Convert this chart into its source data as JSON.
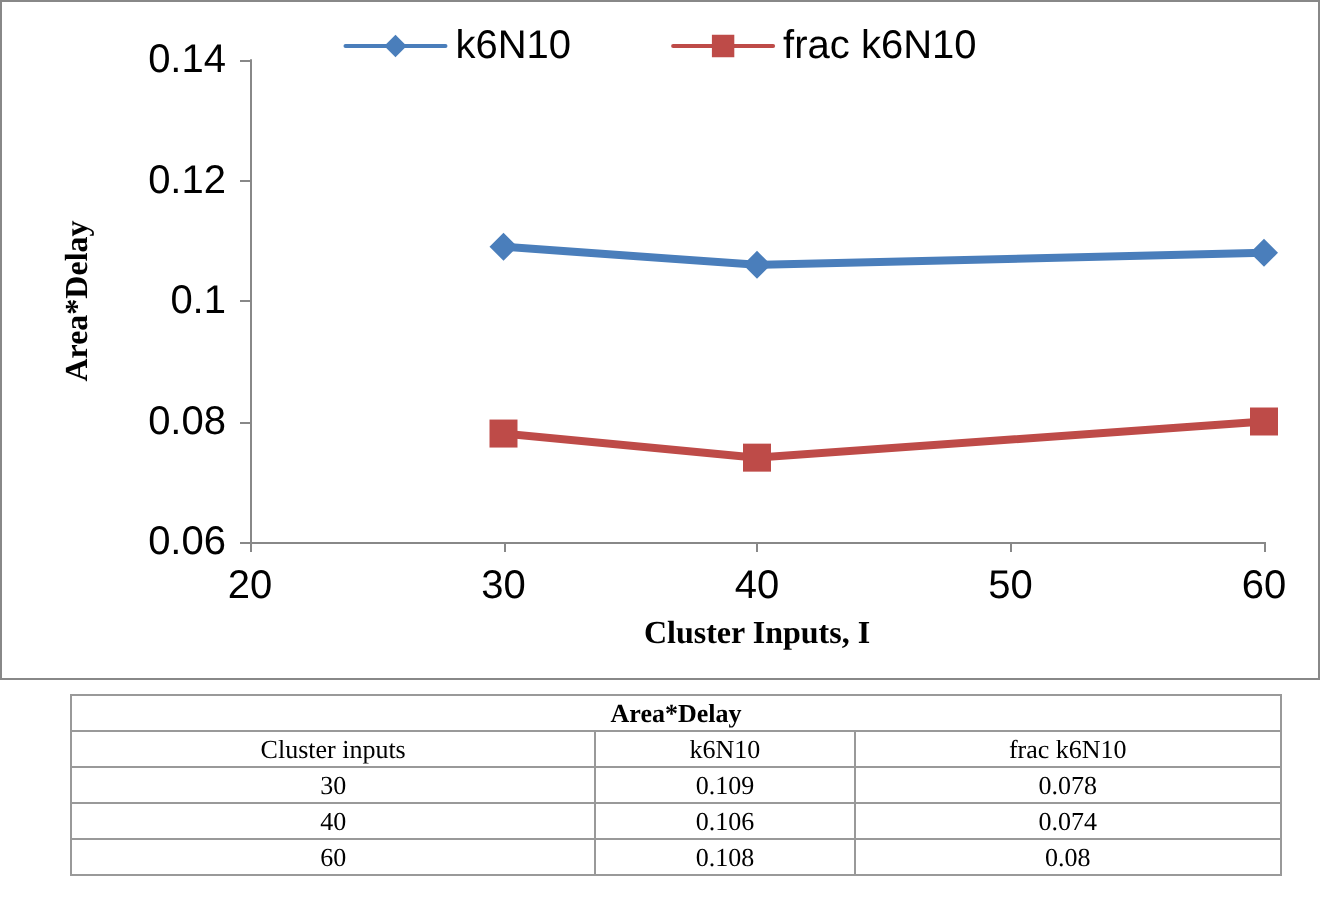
{
  "chart_data": [
    {
      "type": "line",
      "xlabel": "Cluster Inputs, I",
      "ylabel": "Area*Delay",
      "x": [
        30,
        40,
        60
      ],
      "series": [
        {
          "name": "k6N10",
          "color": "#4a7ebb",
          "marker": "diamond",
          "values": [
            0.109,
            0.106,
            0.108
          ]
        },
        {
          "name": "frac k6N10",
          "color": "#be4b48",
          "marker": "square",
          "values": [
            0.078,
            0.074,
            0.08
          ]
        }
      ],
      "xlim": [
        20,
        60
      ],
      "xticks": [
        20,
        30,
        40,
        50,
        60
      ],
      "ylim": [
        0.06,
        0.14
      ],
      "yticks": [
        0.06,
        0.08,
        0.1,
        0.12,
        0.14
      ],
      "grid": false,
      "legend": "top"
    },
    {
      "type": "other",
      "title": "Area*Delay",
      "xlabel": "Cluster inputs",
      "data_labels": true,
      "categories": [
        "30",
        "40",
        "60"
      ],
      "series": [
        {
          "name": "k6N10",
          "values": [
            0.109,
            0.106,
            0.108
          ]
        },
        {
          "name": "frac k6N10",
          "values": [
            0.078,
            0.074,
            0.08
          ]
        }
      ]
    }
  ]
}
